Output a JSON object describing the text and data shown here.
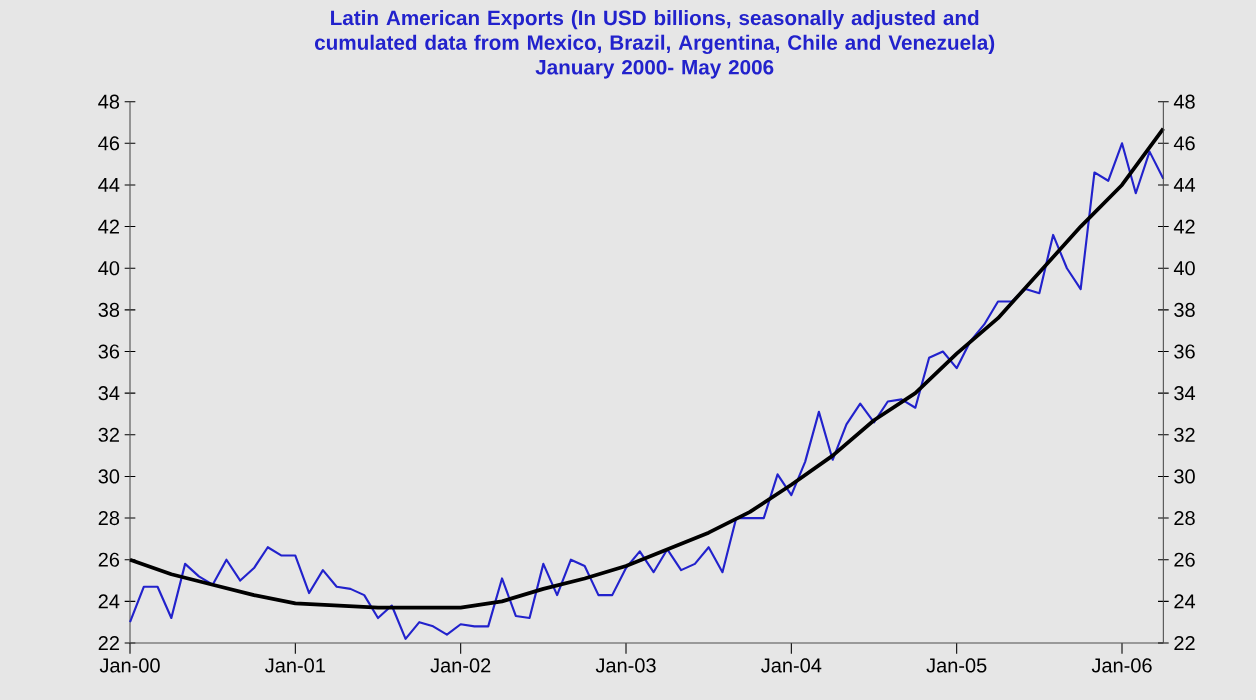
{
  "chart_data": {
    "type": "line",
    "title": "Latin American Exports (In USD billions, seasonally adjusted and cumulated data from Mexico, Brazil, Argentina, Chile and Venezuela)",
    "subtitle": "January 2000- May 2006",
    "xlim": [
      "2000-01",
      "2006-04"
    ],
    "xticks": [
      {
        "value": "2000-01",
        "label": "Jan-00"
      },
      {
        "value": "2001-01",
        "label": "Jan-01"
      },
      {
        "value": "2002-01",
        "label": "Jan-02"
      },
      {
        "value": "2003-01",
        "label": "Jan-03"
      },
      {
        "value": "2004-01",
        "label": "Jan-04"
      },
      {
        "value": "2005-01",
        "label": "Jan-05"
      },
      {
        "value": "2006-01",
        "label": "Jan-06"
      }
    ],
    "ylim": [
      22,
      48
    ],
    "yticks": [
      22,
      24,
      26,
      28,
      30,
      32,
      34,
      36,
      38,
      40,
      42,
      44,
      46,
      48
    ],
    "y2lim": [
      22,
      48
    ],
    "y2ticks": [
      22,
      24,
      26,
      28,
      30,
      32,
      34,
      36,
      38,
      40,
      42,
      44,
      46,
      48
    ],
    "series": [
      {
        "color": "#2222cc",
        "x": [
          "2000-01",
          "2000-02",
          "2000-03",
          "2000-04",
          "2000-05",
          "2000-06",
          "2000-07",
          "2000-08",
          "2000-09",
          "2000-10",
          "2000-11",
          "2000-12",
          "2001-01",
          "2001-02",
          "2001-03",
          "2001-04",
          "2001-05",
          "2001-06",
          "2001-07",
          "2001-08",
          "2001-09",
          "2001-10",
          "2001-11",
          "2001-12",
          "2002-01",
          "2002-02",
          "2002-03",
          "2002-04",
          "2002-05",
          "2002-06",
          "2002-07",
          "2002-08",
          "2002-09",
          "2002-10",
          "2002-11",
          "2002-12",
          "2003-01",
          "2003-02",
          "2003-03",
          "2003-04",
          "2003-05",
          "2003-06",
          "2003-07",
          "2003-08",
          "2003-09",
          "2003-10",
          "2003-11",
          "2003-12",
          "2004-01",
          "2004-02",
          "2004-03",
          "2004-04",
          "2004-05",
          "2004-06",
          "2004-07",
          "2004-08",
          "2004-09",
          "2004-10",
          "2004-11",
          "2004-12",
          "2005-01",
          "2005-02",
          "2005-03",
          "2005-04",
          "2005-05",
          "2005-06",
          "2005-07",
          "2005-08",
          "2005-09",
          "2005-10",
          "2005-11",
          "2005-12",
          "2006-01",
          "2006-02",
          "2006-03",
          "2006-04"
        ],
        "values": [
          23.0,
          24.7,
          24.7,
          23.2,
          25.8,
          25.2,
          24.8,
          26.0,
          25.0,
          25.6,
          26.6,
          26.2,
          26.2,
          24.4,
          25.5,
          24.7,
          24.6,
          24.3,
          23.2,
          23.8,
          22.2,
          23.0,
          22.8,
          22.4,
          22.9,
          22.8,
          22.8,
          25.1,
          23.3,
          23.2,
          25.8,
          24.3,
          26.0,
          25.7,
          24.3,
          24.3,
          25.6,
          26.4,
          25.4,
          26.5,
          25.5,
          25.8,
          26.6,
          25.4,
          28.0,
          28.0,
          28.0,
          30.1,
          29.1,
          30.7,
          33.1,
          30.8,
          32.5,
          33.5,
          32.6,
          33.6,
          33.7,
          33.3,
          35.7,
          36.0,
          35.2,
          36.5,
          37.3,
          38.4,
          38.4,
          39.0,
          38.8,
          41.6,
          40.0,
          39.0,
          44.6,
          44.2,
          46.0,
          43.6,
          45.6,
          44.3
        ]
      },
      {
        "color": "#000000",
        "x": [
          "2000-01",
          "2000-04",
          "2000-07",
          "2000-10",
          "2001-01",
          "2001-07",
          "2002-01",
          "2002-04",
          "2002-07",
          "2002-10",
          "2003-01",
          "2003-07",
          "2003-10",
          "2004-01",
          "2004-04",
          "2004-07",
          "2004-10",
          "2005-01",
          "2005-04",
          "2005-07",
          "2005-10",
          "2006-01",
          "2006-04"
        ],
        "values": [
          26.0,
          25.3,
          24.8,
          24.3,
          23.9,
          23.7,
          23.7,
          24.0,
          24.6,
          25.1,
          25.7,
          27.3,
          28.3,
          29.6,
          31.0,
          32.7,
          34.0,
          35.9,
          37.6,
          39.8,
          42.0,
          44.0,
          46.7
        ]
      }
    ]
  }
}
